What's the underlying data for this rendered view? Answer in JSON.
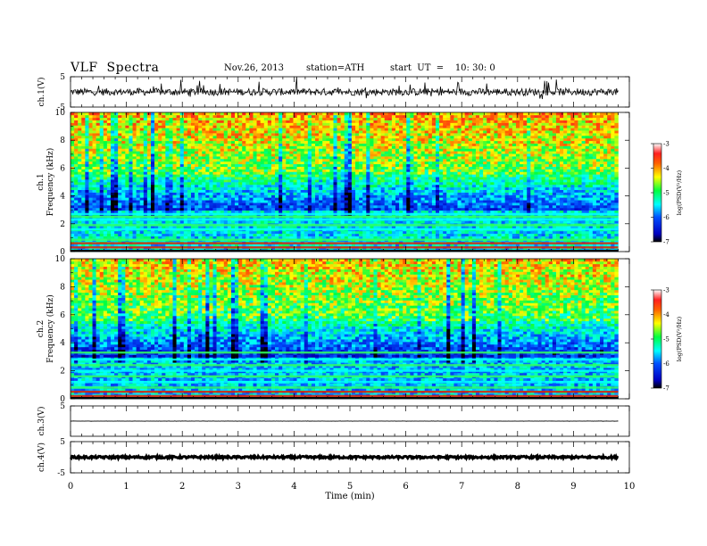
{
  "header": {
    "title": "VLF  Spectra",
    "date": "Nov.26, 2013",
    "station": "station=ATH",
    "start": "start  UT  =    10: 30: 0"
  },
  "chart_data": [
    {
      "type": "line",
      "name": "ch.1 waveform",
      "ylabel": "ch.1(V)",
      "ylim": [
        -5,
        5
      ],
      "yticks": [
        "5",
        "-5"
      ],
      "xlim": [
        0,
        10
      ],
      "data_end_min": 9.8,
      "baseline": 0,
      "noise_amplitude": 1.2
    },
    {
      "type": "heatmap",
      "name": "ch.1 spectrogram",
      "ylabel_lines": [
        "ch.1",
        "Frequency  (kHz)"
      ],
      "ylim": [
        0,
        10
      ],
      "yticks": [
        "0",
        "2",
        "4",
        "6",
        "8",
        "10"
      ],
      "xlim": [
        0,
        10
      ],
      "data_end_min": 9.8,
      "colorbar": {
        "label": "log(PSD(V²/Hz)",
        "range": [
          -7,
          -3
        ],
        "ticks": [
          "-3",
          "-4",
          "-5",
          "-6",
          "-7"
        ]
      },
      "lines_kHz": [
        0.3,
        0.6,
        0.85,
        1.6,
        1.9,
        2.3,
        2.5,
        2.7
      ]
    },
    {
      "type": "heatmap",
      "name": "ch.2 spectrogram",
      "ylabel_lines": [
        "ch.2",
        "Frequency  (kHz)"
      ],
      "ylim": [
        0,
        10
      ],
      "yticks": [
        "0",
        "2",
        "4",
        "6",
        "8",
        "10"
      ],
      "xlim": [
        0,
        10
      ],
      "data_end_min": 9.8,
      "colorbar": {
        "label": "log(PSD(V²/Hz)",
        "range": [
          -7,
          -3
        ],
        "ticks": [
          "-3",
          "-4",
          "-5",
          "-6",
          "-7"
        ]
      },
      "lines_kHz": [
        0.2,
        0.5,
        0.8,
        1.2,
        1.6,
        2.0,
        2.4,
        2.8,
        3.3
      ]
    },
    {
      "type": "line",
      "name": "ch.3 waveform",
      "ylabel": "ch.3(V)",
      "ylim": [
        -5,
        5
      ],
      "yticks": [
        "5"
      ],
      "xlim": [
        0,
        10
      ],
      "data_end_min": 9.8,
      "baseline": 0,
      "noise_amplitude": 0.05
    },
    {
      "type": "line",
      "name": "ch.4 waveform",
      "ylabel": "ch.4(V)",
      "ylim": [
        -5,
        5
      ],
      "yticks": [
        "5",
        "-5"
      ],
      "xlim": [
        0,
        10
      ],
      "data_end_min": 9.8,
      "baseline": 0,
      "noise_amplitude": 0.35
    }
  ],
  "x_axis": {
    "label": "Time  (min)",
    "ticks": [
      "0",
      "1",
      "2",
      "3",
      "4",
      "5",
      "6",
      "7",
      "8",
      "9",
      "10"
    ]
  },
  "colors": {
    "trace": "#000000",
    "colormap": [
      "#000000",
      "#0000ff",
      "#00ffff",
      "#00ff00",
      "#ffff00",
      "#ff0000",
      "#ffffff"
    ]
  }
}
